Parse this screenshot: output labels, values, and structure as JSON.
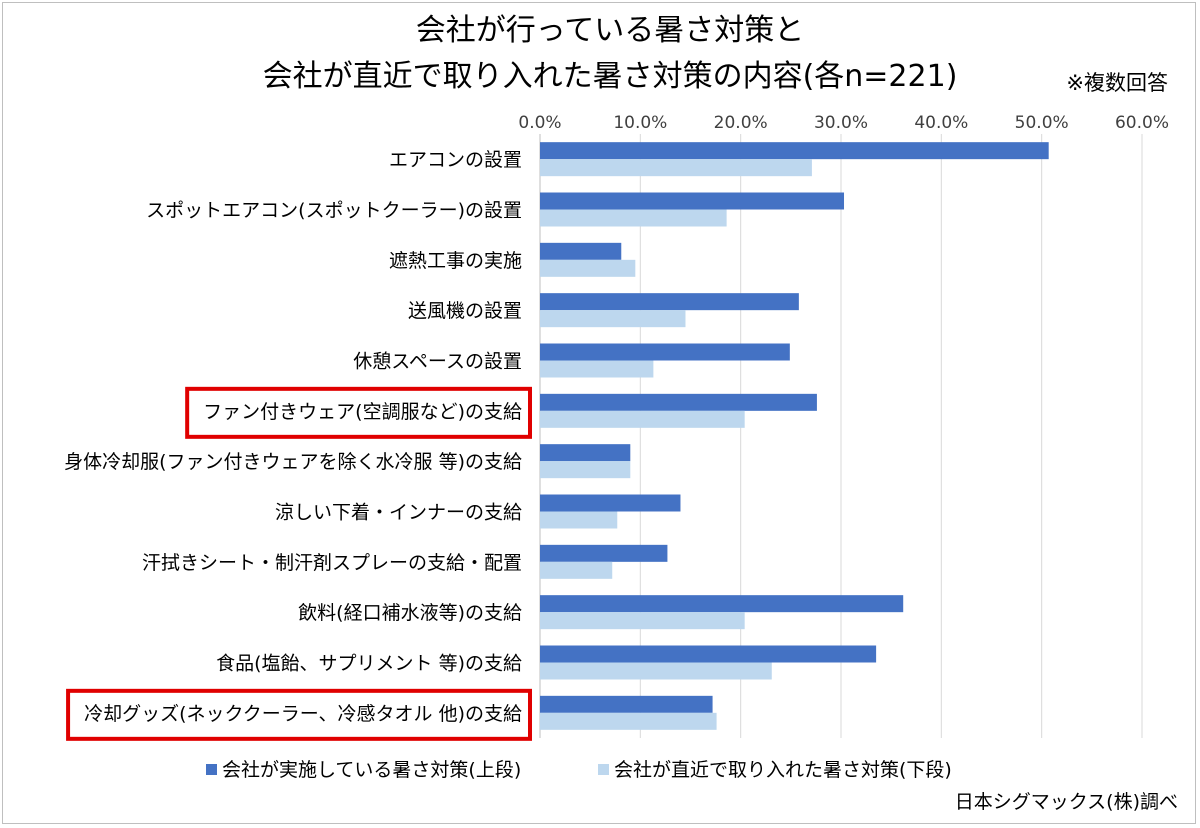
{
  "chart_data": {
    "type": "bar",
    "orientation": "horizontal",
    "title_lines": [
      "会社が行っている暑さ対策と",
      "会社が直近で取り入れた暑さ対策の内容(各n=221)"
    ],
    "note": "※複数回答",
    "source": "日本シグマックス(株)調べ",
    "x_ticks": [
      "0.0%",
      "10.0%",
      "20.0%",
      "30.0%",
      "40.0%",
      "50.0%",
      "60.0%"
    ],
    "xlim": [
      0,
      60
    ],
    "categories": [
      "エアコンの設置",
      "スポットエアコン(スポットクーラー)の設置",
      "遮熱工事の実施",
      "送風機の設置",
      "休憩スペースの設置",
      "ファン付きウェア(空調服など)の支給",
      "身体冷却服(ファン付きウェアを除く水冷服 等)の支給",
      "涼しい下着・インナーの支給",
      "汗拭きシート・制汗剤スプレーの支給・配置",
      "飲料(経口補水液等)の支給",
      "食品(塩飴、サプリメント 等)の支給",
      "冷却グッズ(ネッククーラー、冷感タオル 他)の支給"
    ],
    "highlighted": [
      "ファン付きウェア(空調服など)の支給",
      "冷却グッズ(ネッククーラー、冷感タオル 他)の支給"
    ],
    "series": [
      {
        "name": "会社が実施している暑さ対策(上段)",
        "color": "#4472C4",
        "values": [
          50.7,
          30.3,
          8.1,
          25.8,
          24.9,
          27.6,
          9.0,
          14.0,
          12.7,
          36.2,
          33.5,
          17.2
        ]
      },
      {
        "name": "会社が直近で取り入れた暑さ対策(下段)",
        "color": "#BDD7EE",
        "values": [
          27.1,
          18.6,
          9.5,
          14.5,
          11.3,
          20.4,
          9.0,
          7.7,
          7.2,
          20.4,
          23.1,
          17.6
        ]
      }
    ],
    "grid": true,
    "legend_position": "bottom",
    "highlight_color": "#E00000"
  }
}
